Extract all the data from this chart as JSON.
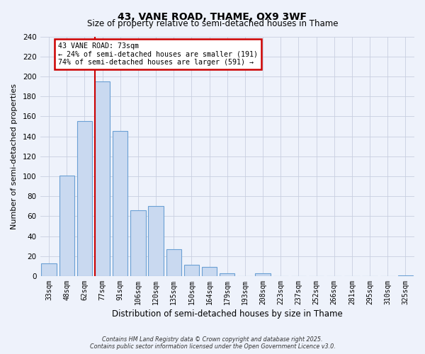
{
  "title": "43, VANE ROAD, THAME, OX9 3WF",
  "subtitle": "Size of property relative to semi-detached houses in Thame",
  "xlabel": "Distribution of semi-detached houses by size in Thame",
  "ylabel": "Number of semi-detached properties",
  "categories": [
    "33sqm",
    "48sqm",
    "62sqm",
    "77sqm",
    "91sqm",
    "106sqm",
    "120sqm",
    "135sqm",
    "150sqm",
    "164sqm",
    "179sqm",
    "193sqm",
    "208sqm",
    "223sqm",
    "237sqm",
    "252sqm",
    "266sqm",
    "281sqm",
    "295sqm",
    "310sqm",
    "325sqm"
  ],
  "values": [
    13,
    101,
    155,
    195,
    145,
    66,
    70,
    27,
    11,
    9,
    3,
    0,
    3,
    0,
    0,
    0,
    0,
    0,
    0,
    0,
    1
  ],
  "bar_color": "#c9d9f0",
  "bar_edge_color": "#6ba0d4",
  "vline_color": "#cc0000",
  "annotation_title": "43 VANE ROAD: 73sqm",
  "annotation_line1": "← 24% of semi-detached houses are smaller (191)",
  "annotation_line2": "74% of semi-detached houses are larger (591) →",
  "annotation_box_edge": "#cc0000",
  "ylim": [
    0,
    240
  ],
  "yticks": [
    0,
    20,
    40,
    60,
    80,
    100,
    120,
    140,
    160,
    180,
    200,
    220,
    240
  ],
  "footer_line1": "Contains HM Land Registry data © Crown copyright and database right 2025.",
  "footer_line2": "Contains public sector information licensed under the Open Government Licence v3.0.",
  "bg_color": "#eef2fb"
}
